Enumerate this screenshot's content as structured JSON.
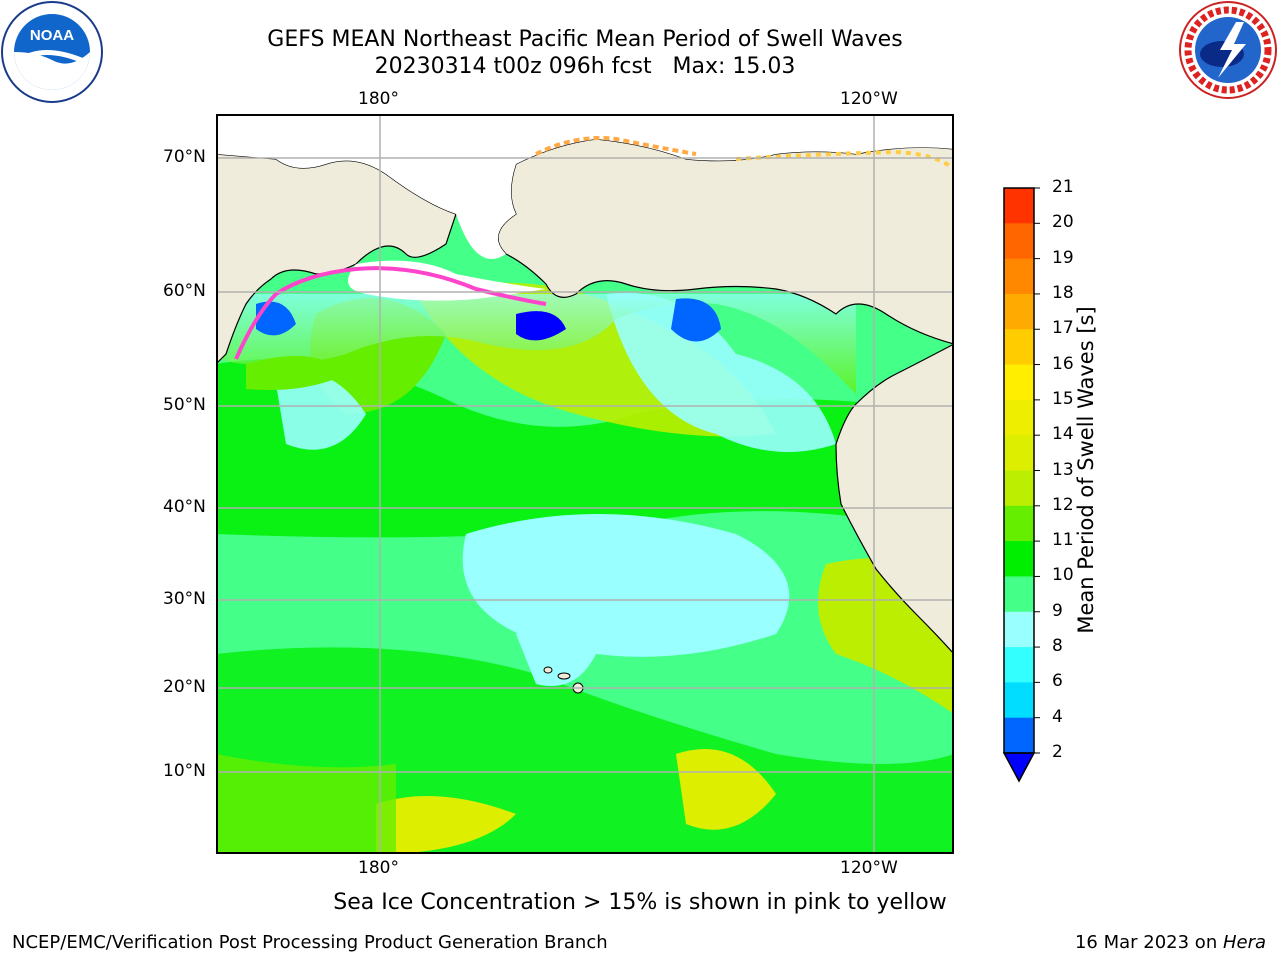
{
  "title_line1": "GEFS MEAN Northeast Pacific Mean Period of Swell Waves",
  "title_line2": "20230314 t00z 096h fcst   Max: 15.03",
  "logos": {
    "left": "NOAA",
    "right": "NATIONAL WEATHER SERVICE"
  },
  "map": {
    "lon_labels": [
      "180°",
      "120°W"
    ],
    "lat_labels": [
      "70°N",
      "60°N",
      "50°N",
      "40°N",
      "30°N",
      "20°N",
      "10°N"
    ],
    "colors": {
      "land": "#efecdb",
      "grid": "#b0b0b0",
      "coast": "#000000"
    }
  },
  "colorbar": {
    "label": "Mean Period of Swell Waves [s]",
    "ticks": [
      "2",
      "4",
      "6",
      "8",
      "9",
      "10",
      "11",
      "12",
      "13",
      "14",
      "15",
      "16",
      "17",
      "18",
      "19",
      "20",
      "21"
    ],
    "colors": [
      "#0066ff",
      "#00ddff",
      "#33ffff",
      "#99ffff",
      "#44ff88",
      "#00ee00",
      "#66ee00",
      "#bbee00",
      "#ddee00",
      "#eeee00",
      "#ffee00",
      "#ffcc00",
      "#ffaa00",
      "#ff8800",
      "#ff6600",
      "#ff3300",
      "#ff0000"
    ],
    "extend_color": "#0000ff"
  },
  "footer": {
    "note": "Sea Ice Concentration > 15% is shown in pink to yellow",
    "left": "NCEP/EMC/Verification Post Processing Product Generation Branch",
    "date": "16 Mar 2023 on ",
    "machine": "Hera"
  }
}
